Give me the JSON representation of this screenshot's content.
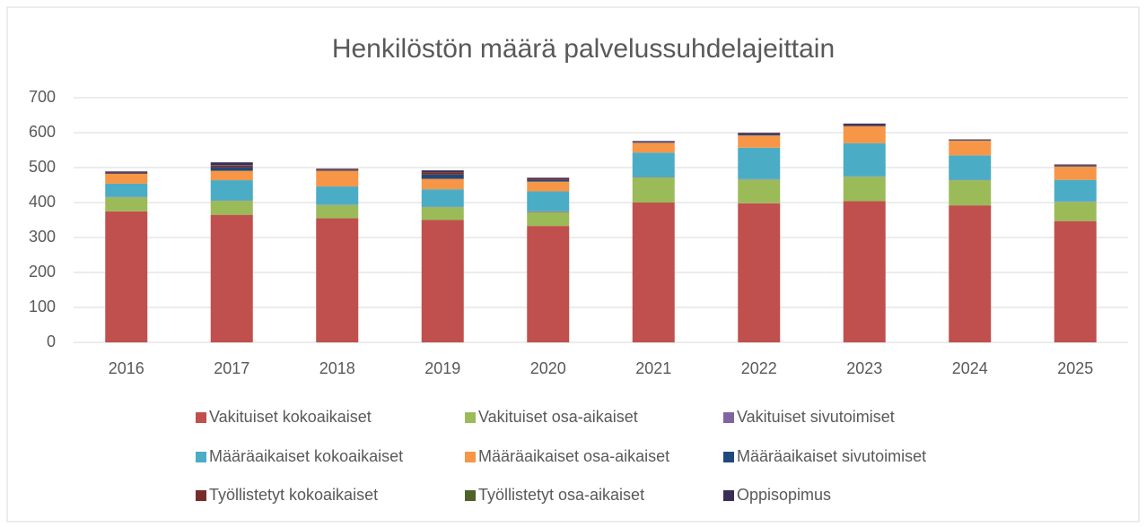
{
  "chart_data": {
    "type": "stacked_bar",
    "title": "Henkilöstön määrä palvelussuhdelajeittain",
    "categories": [
      "2016",
      "2017",
      "2018",
      "2019",
      "2020",
      "2021",
      "2022",
      "2023",
      "2024",
      "2025"
    ],
    "series": [
      {
        "name": "Vakituiset kokoaikaiset",
        "color": "#c0504d",
        "values": [
          375,
          365,
          355,
          350,
          333,
          400,
          398,
          404,
          392,
          347
        ]
      },
      {
        "name": "Vakituiset osa-aikaiset",
        "color": "#9bbb59",
        "values": [
          40,
          40,
          38,
          37,
          40,
          72,
          68,
          70,
          72,
          55
        ]
      },
      {
        "name": "Vakituiset sivutoimiset",
        "color": "#8064a2",
        "values": [
          1,
          1,
          1,
          1,
          2,
          1,
          1,
          1,
          1,
          1
        ]
      },
      {
        "name": "Määräaikaiset kokoaikaiset",
        "color": "#4bacc6",
        "values": [
          38,
          58,
          52,
          50,
          57,
          70,
          90,
          95,
          70,
          62
        ]
      },
      {
        "name": "Määräaikaiset osa-aikaiset",
        "color": "#f79646",
        "values": [
          28,
          27,
          45,
          30,
          28,
          28,
          35,
          48,
          42,
          38
        ]
      },
      {
        "name": "Määräaikaiset sivutoimiset",
        "color": "#1f497d",
        "values": [
          2,
          10,
          2,
          12,
          5,
          2,
          4,
          2,
          2,
          2
        ]
      },
      {
        "name": "Työllistetyt kokoaikaiset",
        "color": "#772c2a",
        "values": [
          3,
          5,
          2,
          6,
          3,
          1,
          2,
          2,
          1,
          2
        ]
      },
      {
        "name": "Työllistetyt osa-aikaiset",
        "color": "#4f6228",
        "values": [
          0,
          1,
          0,
          1,
          0,
          0,
          0,
          0,
          0,
          0
        ]
      },
      {
        "name": "Oppisopimus",
        "color": "#3c2d58",
        "values": [
          2,
          8,
          2,
          5,
          3,
          2,
          2,
          4,
          1,
          2
        ]
      }
    ],
    "ylim": [
      0,
      700
    ],
    "yticks": [
      0,
      100,
      200,
      300,
      400,
      500,
      600,
      700
    ],
    "grid": true,
    "legend": "bottom"
  }
}
